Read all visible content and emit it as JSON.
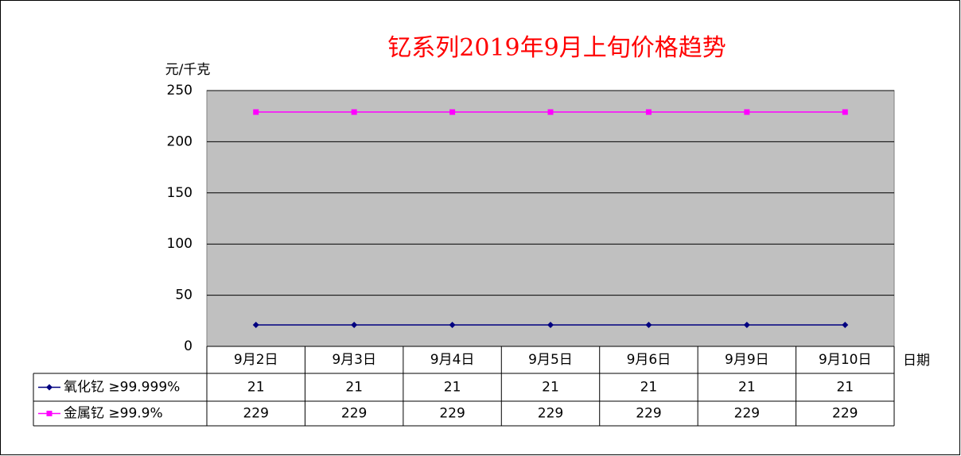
{
  "chart_data": {
    "type": "line",
    "title": "钇系列2019年9月上旬价格趋势",
    "y_label": "元/千克",
    "x_label": "日期",
    "categories": [
      "9月2日",
      "9月3日",
      "9月4日",
      "9月5日",
      "9月6日",
      "9月9日",
      "9月10日"
    ],
    "series": [
      {
        "name": "氧化钇 ≥99.999%",
        "color": "#000080",
        "marker": "diamond",
        "values": [
          21,
          21,
          21,
          21,
          21,
          21,
          21
        ]
      },
      {
        "name": "金属钇 ≥99.9%",
        "color": "#ff00ff",
        "marker": "square",
        "values": [
          229,
          229,
          229,
          229,
          229,
          229,
          229
        ]
      }
    ],
    "ylim": [
      0,
      250
    ],
    "yticks": [
      0,
      50,
      100,
      150,
      200,
      250
    ],
    "grid": true,
    "plot_background": "#c0c0c0"
  }
}
